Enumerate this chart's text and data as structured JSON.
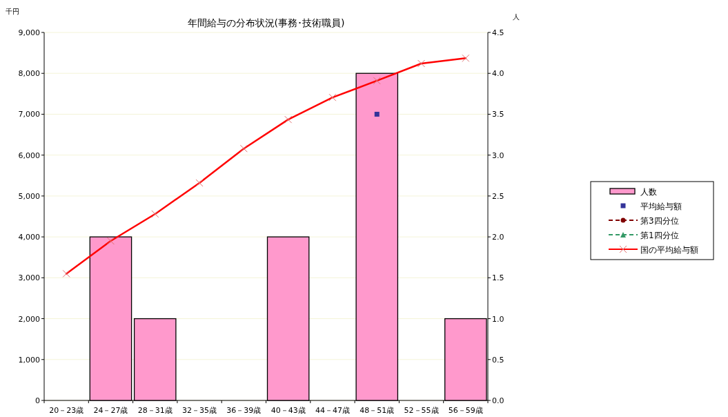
{
  "chart_data": {
    "type": "bar",
    "title": "年間給与の分布状況(事務･技術職員)",
    "ylabel": "千円",
    "y2label": "人",
    "categories": [
      "20－23歳",
      "24－27歳",
      "28－31歳",
      "32－35歳",
      "36－39歳",
      "40－43歳",
      "44－47歳",
      "48－51歳",
      "52－55歳",
      "56－59歳"
    ],
    "series": [
      {
        "name": "人数",
        "axis": "y2",
        "color": "#ff99cc",
        "values": [
          0,
          2,
          1,
          0,
          0,
          2,
          0,
          4,
          0,
          1
        ]
      },
      {
        "name": "平均給与額",
        "type": "scatter",
        "marker": "square",
        "color": "#333399",
        "values": [
          null,
          null,
          null,
          null,
          null,
          null,
          null,
          7000,
          null,
          null
        ]
      },
      {
        "name": "第3四分位",
        "type": "line",
        "marker": "circle",
        "line_style": "dashed",
        "color": "#800000",
        "values": [
          null,
          null,
          null,
          null,
          null,
          null,
          null,
          null,
          null,
          null
        ]
      },
      {
        "name": "第1四分位",
        "type": "line",
        "marker": "triangle",
        "line_style": "dashed",
        "color": "#339966",
        "values": [
          null,
          null,
          null,
          null,
          null,
          null,
          null,
          null,
          null,
          null
        ]
      },
      {
        "name": "国の平均給与額",
        "type": "line",
        "marker": "cross",
        "line_style": "solid",
        "color": "#ff0000",
        "values": [
          3100,
          3900,
          4560,
          5320,
          6160,
          6870,
          7410,
          7820,
          8240,
          8370
        ]
      }
    ],
    "ylim": [
      0,
      9000
    ],
    "yticks": [
      {
        "value": 0,
        "label": "0"
      },
      {
        "value": 1000,
        "label": "1,000"
      },
      {
        "value": 2000,
        "label": "2,000"
      },
      {
        "value": 3000,
        "label": "3,000"
      },
      {
        "value": 4000,
        "label": "4,000"
      },
      {
        "value": 5000,
        "label": "5,000"
      },
      {
        "value": 6000,
        "label": "6,000"
      },
      {
        "value": 7000,
        "label": "7,000"
      },
      {
        "value": 8000,
        "label": "8,000"
      },
      {
        "value": 9000,
        "label": "9,000"
      }
    ],
    "y2lim": [
      0,
      4.5
    ],
    "y2ticks": [
      {
        "value": 0,
        "label": "0.0"
      },
      {
        "value": 0.5,
        "label": "0.5"
      },
      {
        "value": 1,
        "label": "1.0"
      },
      {
        "value": 1.5,
        "label": "1.5"
      },
      {
        "value": 2,
        "label": "2.0"
      },
      {
        "value": 2.5,
        "label": "2.5"
      },
      {
        "value": 3,
        "label": "3.0"
      },
      {
        "value": 3.5,
        "label": "3.5"
      },
      {
        "value": 4,
        "label": "4.0"
      },
      {
        "value": 4.5,
        "label": "4.5"
      }
    ],
    "grid": "y",
    "legend": "right"
  }
}
